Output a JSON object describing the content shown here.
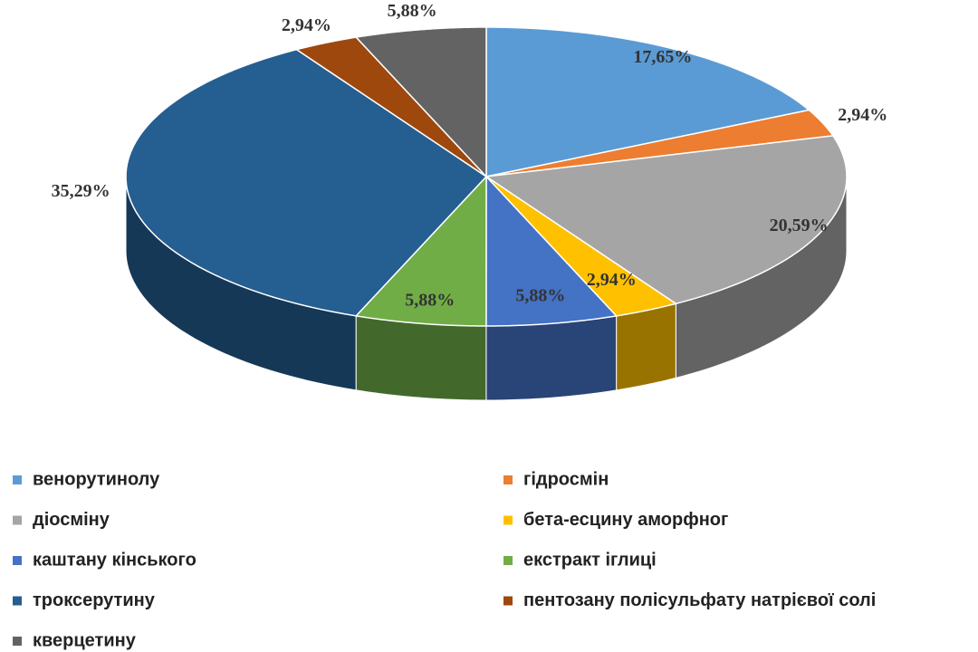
{
  "chart_data": {
    "type": "pie3d",
    "categories": [
      "венорутинолу",
      "гідросмін",
      "діосміну",
      "бета-есцину аморфног",
      "каштану кінського",
      "екстракт іглиці",
      "троксерутину",
      "пентозану полісульфату натрієвої солі",
      "кверцетину"
    ],
    "values": [
      17.65,
      2.94,
      20.59,
      2.94,
      5.88,
      5.88,
      35.29,
      2.94,
      5.88
    ],
    "value_labels": [
      "17,65%",
      "2,94%",
      "20,59%",
      "2,94%",
      "5,88%",
      "5,88%",
      "35,29%",
      "2,94%",
      "5,88%"
    ],
    "colors": [
      "#5b9bd5",
      "#ed7d31",
      "#a5a5a5",
      "#ffc000",
      "#4472c4",
      "#70ad47",
      "#255e91",
      "#9e480e",
      "#636363"
    ],
    "legend": "bottom"
  }
}
